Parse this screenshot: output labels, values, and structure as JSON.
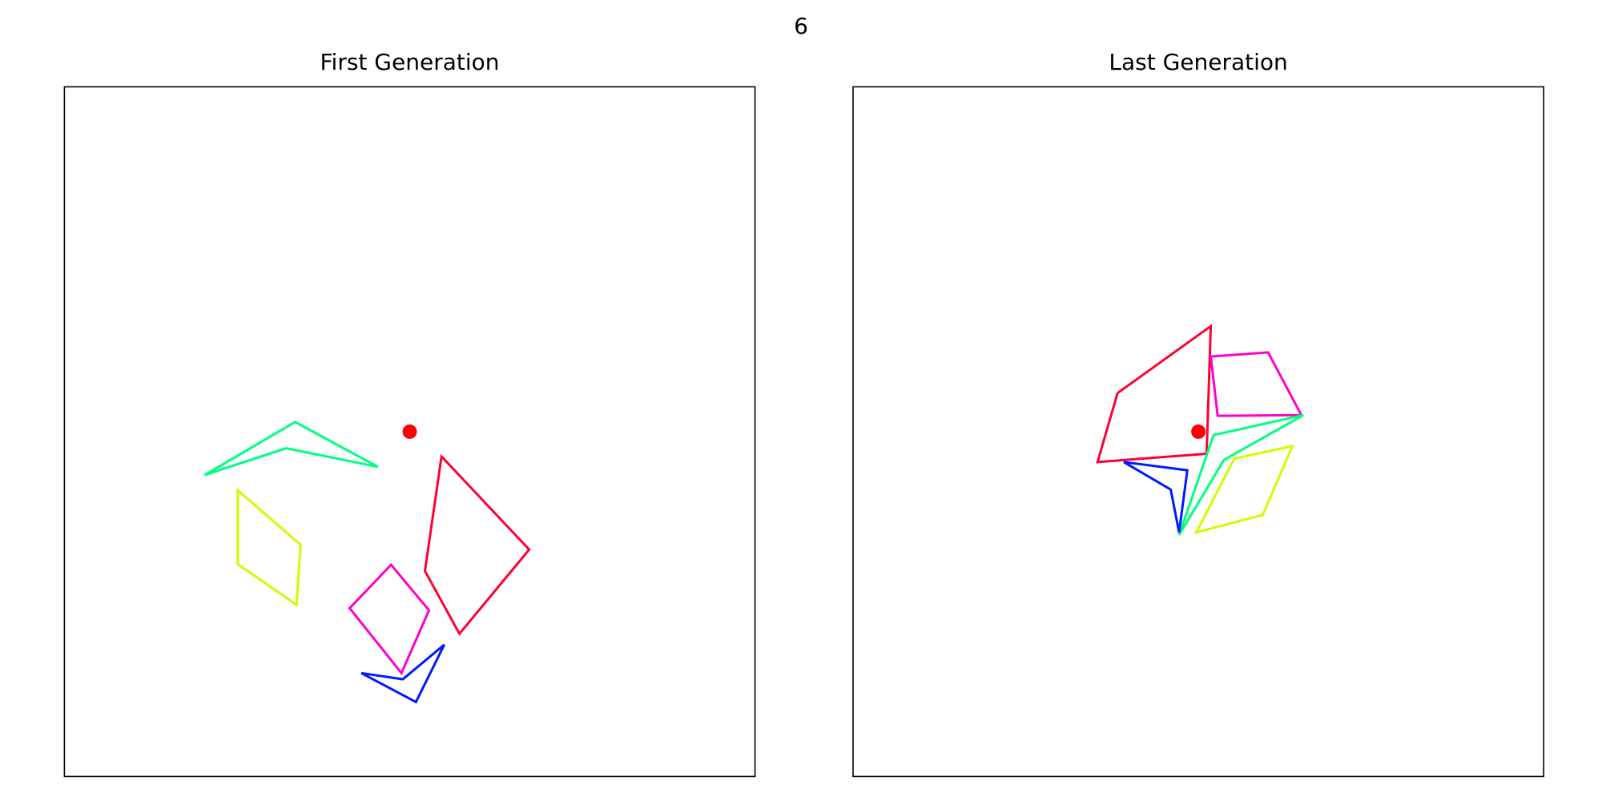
{
  "suptitle": "6",
  "chart_data": [
    {
      "type": "polygon",
      "title": "First Generation",
      "xlim": [
        0,
        100
      ],
      "ylim": [
        0,
        100
      ],
      "points": {
        "color": "#ff0000",
        "x": [
          50
        ],
        "y": [
          50
        ]
      },
      "series": [
        {
          "color": "#00ff80",
          "x": [
            20.3,
            33.4,
            45.4,
            32.1
          ],
          "y": [
            43.7,
            51.4,
            44.9,
            47.6
          ]
        },
        {
          "color": "#ccff00",
          "x": [
            25.1,
            34.2,
            33.6,
            25.1
          ],
          "y": [
            41.5,
            33.6,
            24.9,
            30.8
          ]
        },
        {
          "color": "#ff00cc",
          "x": [
            47.3,
            52.8,
            48.8,
            41.3
          ],
          "y": [
            30.7,
            24.1,
            15.0,
            24.4
          ]
        },
        {
          "color": "#0019ff",
          "x": [
            43.0,
            49.0,
            55.0,
            50.9
          ],
          "y": [
            15.0,
            14.1,
            19.1,
            10.8
          ]
        },
        {
          "color": "#ff0033",
          "x": [
            54.6,
            67.3,
            57.2,
            52.2
          ],
          "y": [
            46.4,
            32.9,
            20.7,
            29.8
          ]
        }
      ]
    },
    {
      "type": "polygon",
      "title": "Last Generation",
      "xlim": [
        0,
        100
      ],
      "ylim": [
        0,
        100
      ],
      "points": {
        "color": "#ff0000",
        "x": [
          50
        ],
        "y": [
          50
        ]
      },
      "series": [
        {
          "color": "#ff0033",
          "x": [
            38.3,
            51.8,
            51.2,
            35.4
          ],
          "y": [
            55.6,
            65.3,
            46.8,
            45.6
          ]
        },
        {
          "color": "#ff00cc",
          "x": [
            51.8,
            60.1,
            64.9,
            52.8
          ],
          "y": [
            60.9,
            61.5,
            52.4,
            52.3
          ]
        },
        {
          "color": "#00ff80",
          "x": [
            47.2,
            52.2,
            65.2,
            53.7
          ],
          "y": [
            35.0,
            49.5,
            52.4,
            45.9
          ]
        },
        {
          "color": "#ccff00",
          "x": [
            55.2,
            63.6,
            59.3,
            49.7
          ],
          "y": [
            46.1,
            47.9,
            37.9,
            35.4
          ]
        },
        {
          "color": "#0019ff",
          "x": [
            39.2,
            48.4,
            47.2,
            46.0
          ],
          "y": [
            45.6,
            44.4,
            35.4,
            41.6
          ]
        }
      ]
    }
  ]
}
